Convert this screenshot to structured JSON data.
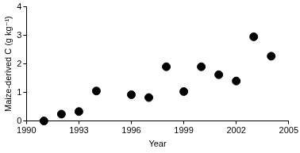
{
  "chart_data": {
    "type": "scatter",
    "x_label": "Year",
    "y_label": "Maize-derived C (g kg⁻¹)",
    "x": [
      1991,
      1992,
      1993,
      1994,
      1996,
      1997,
      1998,
      1999,
      2000,
      2001,
      2002,
      2003,
      2004
    ],
    "values": [
      0,
      0.24,
      0.33,
      1.05,
      0.92,
      0.82,
      1.9,
      1.03,
      1.9,
      1.62,
      1.4,
      2.95,
      2.27
    ],
    "color": "#000000",
    "marker": "circle",
    "xlim": [
      1990,
      2005
    ],
    "xticks": [
      1990,
      1993,
      1996,
      1999,
      2002,
      2005
    ],
    "ylim": [
      0,
      4
    ],
    "yticks": [
      0,
      1,
      2,
      3,
      4
    ],
    "grid": false
  }
}
